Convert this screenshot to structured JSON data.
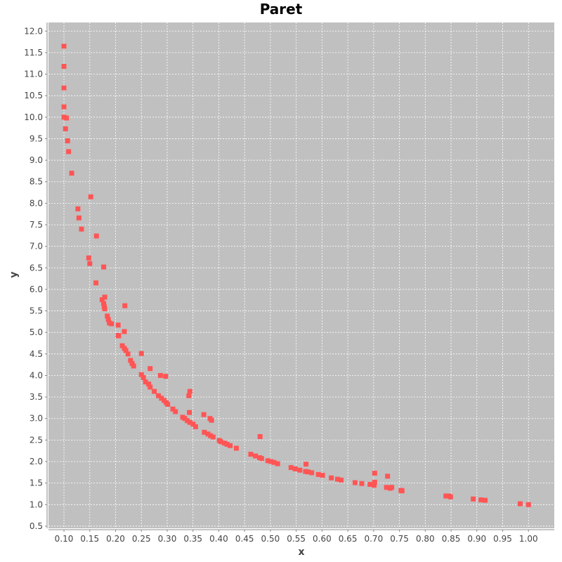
{
  "colors": {
    "background": "#ffffff",
    "plot_background": "#c0c0c0",
    "gridline": "#ffffff",
    "point": "#ff5555",
    "axis": "#888888",
    "tick_text": "#444444"
  },
  "chart_data": {
    "type": "scatter",
    "title": "Paret",
    "xlabel": "x",
    "ylabel": "y",
    "xlim": [
      0.07,
      1.05
    ],
    "ylim": [
      0.45,
      12.2
    ],
    "grid": true,
    "legend": "none",
    "x_ticks": [
      "0.10",
      "0.15",
      "0.20",
      "0.25",
      "0.30",
      "0.35",
      "0.40",
      "0.45",
      "0.50",
      "0.55",
      "0.60",
      "0.65",
      "0.70",
      "0.75",
      "0.80",
      "0.85",
      "0.90",
      "0.95",
      "1.00"
    ],
    "y_ticks": [
      "0.5",
      "1.0",
      "1.5",
      "2.0",
      "2.5",
      "3.0",
      "3.5",
      "4.0",
      "4.5",
      "5.0",
      "5.5",
      "6.0",
      "6.5",
      "7.0",
      "7.5",
      "8.0",
      "8.5",
      "9.0",
      "9.5",
      "10.0",
      "10.5",
      "11.0",
      "11.5",
      "12.0"
    ],
    "points": [
      [
        0.1,
        11.65
      ],
      [
        0.1,
        11.18
      ],
      [
        0.1,
        10.68
      ],
      [
        0.1,
        10.24
      ],
      [
        0.1,
        10.0
      ],
      [
        0.105,
        9.98
      ],
      [
        0.103,
        9.73
      ],
      [
        0.107,
        9.45
      ],
      [
        0.109,
        9.2
      ],
      [
        0.115,
        8.7
      ],
      [
        0.152,
        8.15
      ],
      [
        0.127,
        7.87
      ],
      [
        0.129,
        7.66
      ],
      [
        0.134,
        7.4
      ],
      [
        0.163,
        7.24
      ],
      [
        0.148,
        6.73
      ],
      [
        0.15,
        6.6
      ],
      [
        0.177,
        6.52
      ],
      [
        0.162,
        6.15
      ],
      [
        0.179,
        5.82
      ],
      [
        0.174,
        5.76
      ],
      [
        0.177,
        5.67
      ],
      [
        0.178,
        5.6
      ],
      [
        0.179,
        5.55
      ],
      [
        0.218,
        5.62
      ],
      [
        0.184,
        5.38
      ],
      [
        0.186,
        5.3
      ],
      [
        0.188,
        5.22
      ],
      [
        0.192,
        5.2
      ],
      [
        0.205,
        5.17
      ],
      [
        0.217,
        5.02
      ],
      [
        0.205,
        4.93
      ],
      [
        0.206,
        4.92
      ],
      [
        0.213,
        4.69
      ],
      [
        0.217,
        4.63
      ],
      [
        0.22,
        4.58
      ],
      [
        0.224,
        4.5
      ],
      [
        0.25,
        4.51
      ],
      [
        0.229,
        4.35
      ],
      [
        0.232,
        4.28
      ],
      [
        0.235,
        4.22
      ],
      [
        0.267,
        4.16
      ],
      [
        0.25,
        4.02
      ],
      [
        0.254,
        3.95
      ],
      [
        0.287,
        4.0
      ],
      [
        0.297,
        3.98
      ],
      [
        0.258,
        3.85
      ],
      [
        0.264,
        3.8
      ],
      [
        0.267,
        3.73
      ],
      [
        0.275,
        3.63
      ],
      [
        0.283,
        3.53
      ],
      [
        0.289,
        3.47
      ],
      [
        0.294,
        3.42
      ],
      [
        0.298,
        3.37
      ],
      [
        0.301,
        3.33
      ],
      [
        0.344,
        3.63
      ],
      [
        0.342,
        3.53
      ],
      [
        0.311,
        3.22
      ],
      [
        0.316,
        3.16
      ],
      [
        0.343,
        3.14
      ],
      [
        0.371,
        3.09
      ],
      [
        0.33,
        3.03
      ],
      [
        0.334,
        3.0
      ],
      [
        0.339,
        2.95
      ],
      [
        0.344,
        2.91
      ],
      [
        0.35,
        2.87
      ],
      [
        0.355,
        2.81
      ],
      [
        0.383,
        3.0
      ],
      [
        0.386,
        2.96
      ],
      [
        0.372,
        2.68
      ],
      [
        0.379,
        2.64
      ],
      [
        0.384,
        2.6
      ],
      [
        0.389,
        2.57
      ],
      [
        0.401,
        2.49
      ],
      [
        0.404,
        2.46
      ],
      [
        0.411,
        2.43
      ],
      [
        0.416,
        2.4
      ],
      [
        0.422,
        2.37
      ],
      [
        0.434,
        2.31
      ],
      [
        0.48,
        2.58
      ],
      [
        0.462,
        2.17
      ],
      [
        0.471,
        2.13
      ],
      [
        0.479,
        2.09
      ],
      [
        0.483,
        2.07
      ],
      [
        0.495,
        2.02
      ],
      [
        0.501,
        2.0
      ],
      [
        0.507,
        1.98
      ],
      [
        0.514,
        1.95
      ],
      [
        0.569,
        1.94
      ],
      [
        0.54,
        1.86
      ],
      [
        0.548,
        1.83
      ],
      [
        0.557,
        1.8
      ],
      [
        0.568,
        1.77
      ],
      [
        0.573,
        1.76
      ],
      [
        0.58,
        1.74
      ],
      [
        0.593,
        1.7
      ],
      [
        0.601,
        1.68
      ],
      [
        0.618,
        1.62
      ],
      [
        0.63,
        1.59
      ],
      [
        0.637,
        1.57
      ],
      [
        0.664,
        1.51
      ],
      [
        0.677,
        1.49
      ],
      [
        0.693,
        1.47
      ],
      [
        0.701,
        1.45
      ],
      [
        0.702,
        1.52
      ],
      [
        0.702,
        1.73
      ],
      [
        0.727,
        1.66
      ],
      [
        0.725,
        1.4
      ],
      [
        0.732,
        1.38
      ],
      [
        0.735,
        1.4
      ],
      [
        0.753,
        1.33
      ],
      [
        0.755,
        1.32
      ],
      [
        0.84,
        1.2
      ],
      [
        0.845,
        1.2
      ],
      [
        0.849,
        1.18
      ],
      [
        0.893,
        1.13
      ],
      [
        0.908,
        1.11
      ],
      [
        0.916,
        1.1
      ],
      [
        0.984,
        1.02
      ],
      [
        1.0,
        1.0
      ]
    ]
  }
}
